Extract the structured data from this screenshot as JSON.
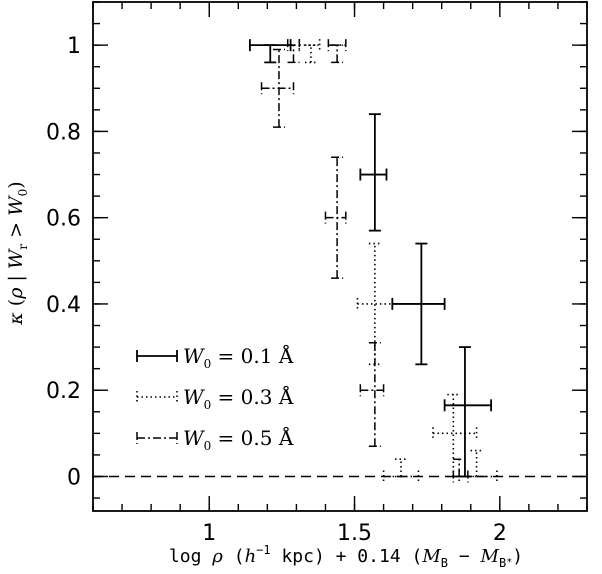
{
  "chart_data": {
    "type": "scatter",
    "x_label_parts": {
      "prefix": "log ",
      "rho": "ρ",
      "open": " (",
      "h": "h",
      "h_exp": "−1",
      "mid": " kpc) + 0.14 (",
      "m1": "M",
      "m1_sub": "B",
      "minus": " − ",
      "m2": "M",
      "m2_sub": "B",
      "m2_sup": "*",
      "close": ")"
    },
    "y_label_parts": {
      "kappa": "κ",
      "open": " (",
      "rho": "ρ",
      "bar": " | ",
      "w": "W",
      "w_sub": "r",
      "gt": " > ",
      "w0": "W",
      "w0_sub": "0",
      "close": ")"
    },
    "xlim": [
      0.6,
      2.3
    ],
    "ylim": [
      -0.08,
      1.1
    ],
    "xticks": [
      {
        "v": 1,
        "label": "1"
      },
      {
        "v": 1.5,
        "label": "1.5"
      },
      {
        "v": 2,
        "label": "2"
      }
    ],
    "yticks": [
      {
        "v": 0,
        "label": "0"
      },
      {
        "v": 0.2,
        "label": "0.2"
      },
      {
        "v": 0.4,
        "label": "0.4"
      },
      {
        "v": 0.6,
        "label": "0.6"
      },
      {
        "v": 0.8,
        "label": "0.8"
      },
      {
        "v": 1,
        "label": "1"
      }
    ],
    "minor_x_step": 0.1,
    "minor_y_step": 0.05,
    "reference_line_y": 0,
    "legend_placement": "bottom-left",
    "series": [
      {
        "name_w": "W",
        "name_sub": "0",
        "name_rest": " = 0.1  Å",
        "style": "solid",
        "points": [
          {
            "x": 1.21,
            "xl": 1.14,
            "xh": 1.28,
            "y": 1.0,
            "yl": 0.96,
            "yh": 1.0
          },
          {
            "x": 1.57,
            "xl": 1.52,
            "xh": 1.61,
            "y": 0.7,
            "yl": 0.57,
            "yh": 0.84
          },
          {
            "x": 1.73,
            "xl": 1.63,
            "xh": 1.81,
            "y": 0.4,
            "yl": 0.26,
            "yh": 0.54
          },
          {
            "x": 1.88,
            "xl": 1.81,
            "xh": 1.97,
            "y": 0.165,
            "yl": 0.0,
            "yh": 0.3
          }
        ]
      },
      {
        "name_w": "W",
        "name_sub": "0",
        "name_rest": " = 0.3  Å",
        "style": "dotted",
        "points": [
          {
            "x": 1.35,
            "xl": 1.31,
            "xh": 1.38,
            "y": 1.0,
            "yl": 0.96,
            "yh": 1.0
          },
          {
            "x": 1.57,
            "xl": 1.51,
            "xh": 1.63,
            "y": 0.4,
            "yl": 0.26,
            "yh": 0.54
          },
          {
            "x": 1.66,
            "xl": 1.6,
            "xh": 1.72,
            "y": 0.0,
            "yl": 0.0,
            "yh": 0.04
          },
          {
            "x": 1.84,
            "xl": 1.77,
            "xh": 1.92,
            "y": 0.1,
            "yl": 0.0,
            "yh": 0.19
          },
          {
            "x": 1.92,
            "xl": 1.86,
            "xh": 1.99,
            "y": 0.0,
            "yl": 0.0,
            "yh": 0.06
          }
        ]
      },
      {
        "name_w": "W",
        "name_sub": "0",
        "name_rest": " = 0.5  Å",
        "style": "dashdot",
        "points": [
          {
            "x": 1.24,
            "xl": 1.18,
            "xh": 1.29,
            "y": 0.9,
            "yl": 0.81,
            "yh": 0.99
          },
          {
            "x": 1.29,
            "xl": 1.27,
            "xh": 1.31,
            "y": 1.0,
            "yl": 0.96,
            "yh": 1.0
          },
          {
            "x": 1.44,
            "xl": 1.41,
            "xh": 1.47,
            "y": 1.0,
            "yl": 0.96,
            "yh": 1.0
          },
          {
            "x": 1.44,
            "xl": 1.4,
            "xh": 1.47,
            "y": 0.6,
            "yl": 0.46,
            "yh": 0.74
          },
          {
            "x": 1.57,
            "xl": 1.52,
            "xh": 1.6,
            "y": 0.2,
            "yl": 0.07,
            "yh": 0.31
          },
          {
            "x": 1.86,
            "xl": 1.84,
            "xh": 1.89,
            "y": 0.0,
            "yl": 0.0,
            "yh": 0.04
          }
        ]
      }
    ]
  }
}
